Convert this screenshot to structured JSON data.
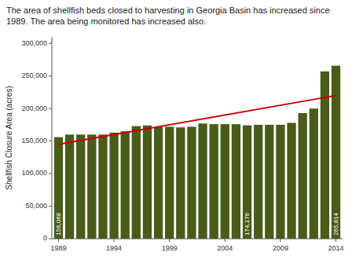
{
  "chart_data": {
    "type": "bar",
    "title": "The area of shellfish beds closed to harvesting in Georgia Basin has increased since 1989. The area being monitored has increased also.",
    "y_label": "Shellfish Closure Area (acres)",
    "x": [
      1989,
      1990,
      1991,
      1992,
      1993,
      1994,
      1995,
      1996,
      1997,
      1998,
      1999,
      2000,
      2001,
      2002,
      2003,
      2004,
      2005,
      2006,
      2007,
      2008,
      2009,
      2010,
      2011,
      2012,
      2013,
      2014
    ],
    "values": [
      156068,
      160000,
      160000,
      160000,
      160000,
      163000,
      165000,
      173000,
      174000,
      172000,
      172000,
      171000,
      172000,
      177000,
      176000,
      176000,
      176000,
      174176,
      175000,
      175000,
      175000,
      178000,
      193000,
      200000,
      257000,
      265814
    ],
    "color": "#4a5c1a",
    "trend_line": {
      "type": "line",
      "x": [
        1989,
        2014
      ],
      "values": [
        145000,
        220000
      ],
      "color": "#cc0000"
    },
    "annotations": [
      {
        "x": 1989,
        "y": 5000,
        "text": "156,068"
      },
      {
        "x": 2006,
        "y": 5000,
        "text": "174,176"
      },
      {
        "x": 2014,
        "y": 5000,
        "text": "265,814"
      }
    ],
    "xlim": [
      1988.4,
      2014.6
    ],
    "xticks": [
      1989,
      1994,
      1999,
      2004,
      2009,
      2014
    ],
    "ylim": [
      0,
      310000
    ],
    "yticks": [
      0,
      {
        "value": 50000,
        "label": "50,000"
      },
      {
        "value": 100000,
        "label": "100,000"
      },
      {
        "value": 150000,
        "label": "150,000"
      },
      {
        "value": 200000,
        "label": "200,000"
      },
      {
        "value": 250000,
        "label": "250,000"
      },
      {
        "value": 300000,
        "label": "300,000"
      }
    ],
    "grid": false
  }
}
